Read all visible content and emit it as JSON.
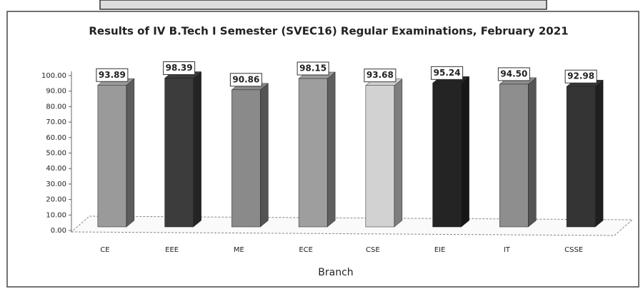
{
  "chart_data": {
    "type": "bar3d",
    "title": "Results of IV B.Tech I Semester (SVEC16) Regular Examinations, February 2021",
    "xlabel": "Branch",
    "categories": [
      "CE",
      "EEE",
      "ME",
      "ECE",
      "CSE",
      "EIE",
      "IT",
      "CSSE"
    ],
    "values": [
      93.89,
      98.39,
      90.86,
      98.15,
      93.68,
      95.24,
      94.5,
      92.98
    ],
    "value_labels": [
      "93.89",
      "98.39",
      "90.86",
      "98.15",
      "93.68",
      "95.24",
      "94.50",
      "92.98"
    ],
    "colors": [
      "#9a9a9a",
      "#3c3c3c",
      "#8a8a8a",
      "#9e9e9e",
      "#d2d2d2",
      "#242424",
      "#8e8e8e",
      "#343434"
    ],
    "ylim": [
      0,
      100
    ],
    "yticks": [
      {
        "value": 0,
        "label": "0.00"
      },
      {
        "value": 10,
        "label": "10.00"
      },
      {
        "value": 20,
        "label": "20.00"
      },
      {
        "value": 30,
        "label": "30.00"
      },
      {
        "value": 40,
        "label": "40.00"
      },
      {
        "value": 50,
        "label": "50.00"
      },
      {
        "value": 60,
        "label": "60.00"
      },
      {
        "value": 70,
        "label": "70.00"
      },
      {
        "value": 80,
        "label": "80.00"
      },
      {
        "value": 90,
        "label": "90.00"
      },
      {
        "value": 100,
        "label": "100.00"
      }
    ]
  }
}
